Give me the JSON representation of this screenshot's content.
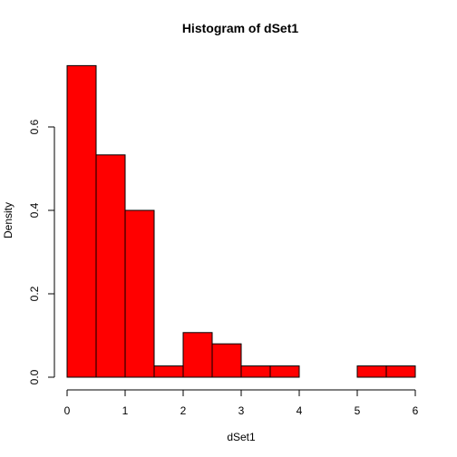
{
  "chart_data": {
    "type": "bar",
    "title": "Histogram of dSet1",
    "xlabel": "dSet1",
    "ylabel": "Density",
    "bar_color": "#ff0000",
    "xlim": [
      0,
      6
    ],
    "ylim": [
      0,
      0.75
    ],
    "x_ticks": [
      "0",
      "1",
      "2",
      "3",
      "4",
      "5",
      "6"
    ],
    "y_ticks": [
      "0.0",
      "0.2",
      "0.4",
      "0.6"
    ],
    "bins": [
      {
        "from": 0.0,
        "to": 0.5,
        "density": 0.747
      },
      {
        "from": 0.5,
        "to": 1.0,
        "density": 0.533
      },
      {
        "from": 1.0,
        "to": 1.5,
        "density": 0.4
      },
      {
        "from": 1.5,
        "to": 2.0,
        "density": 0.027
      },
      {
        "from": 2.0,
        "to": 2.5,
        "density": 0.107
      },
      {
        "from": 2.5,
        "to": 3.0,
        "density": 0.08
      },
      {
        "from": 3.0,
        "to": 3.5,
        "density": 0.027
      },
      {
        "from": 3.5,
        "to": 4.0,
        "density": 0.027
      },
      {
        "from": 4.0,
        "to": 4.5,
        "density": 0.0
      },
      {
        "from": 4.5,
        "to": 5.0,
        "density": 0.0
      },
      {
        "from": 5.0,
        "to": 5.5,
        "density": 0.027
      },
      {
        "from": 5.5,
        "to": 6.0,
        "density": 0.027
      }
    ]
  }
}
